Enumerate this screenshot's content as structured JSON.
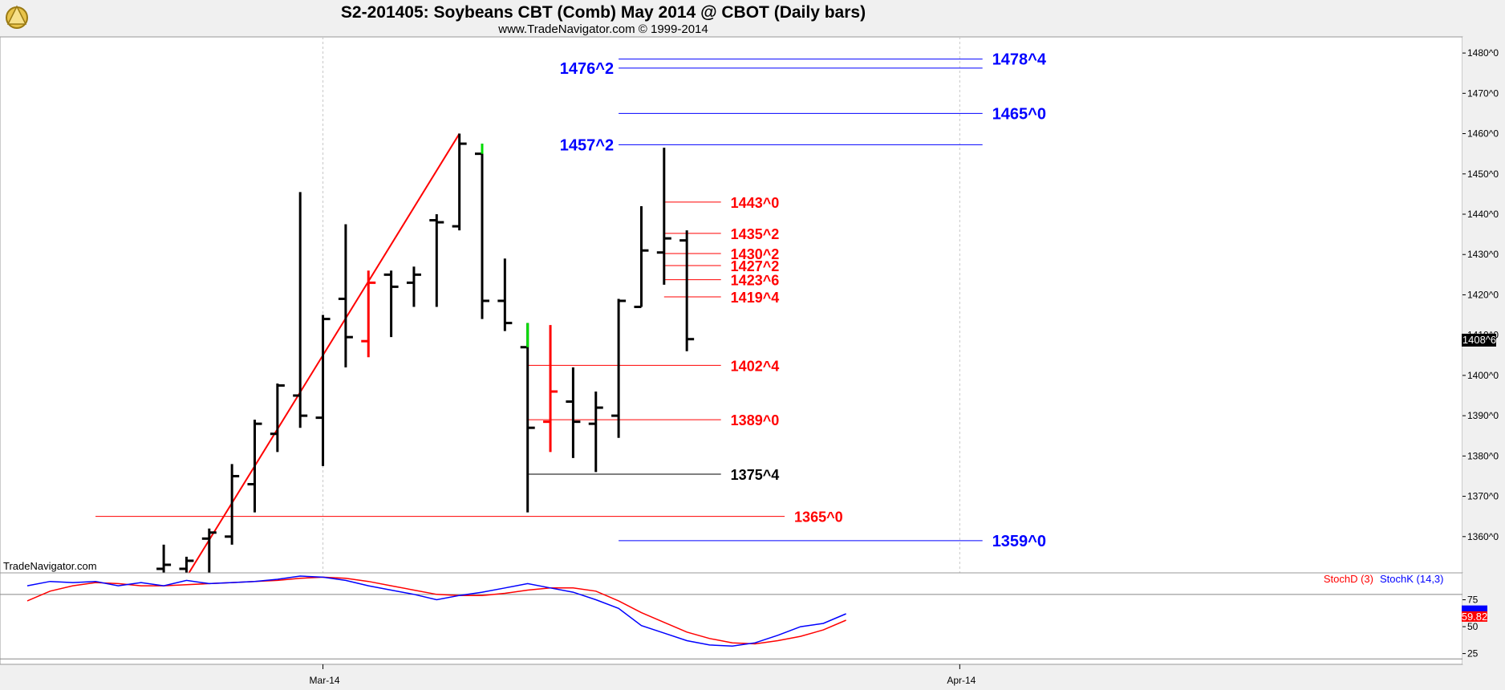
{
  "header": {
    "title": "S2-201405:  Soybeans CBT (Comb) May 2014 @ CBOT  (Daily bars)",
    "subtitle": "www.TradeNavigator.com © 1999-2014",
    "watermark": "TradeNavigator.com"
  },
  "chart_data": {
    "type": "ohlc",
    "y_range": [
      1351,
      1484
    ],
    "y_ticks": [
      {
        "v": 1360,
        "label": "1360^0"
      },
      {
        "v": 1370,
        "label": "1370^0"
      },
      {
        "v": 1380,
        "label": "1380^0"
      },
      {
        "v": 1390,
        "label": "1390^0"
      },
      {
        "v": 1400,
        "label": "1400^0"
      },
      {
        "v": 1410,
        "label": "1410^0"
      },
      {
        "v": 1420,
        "label": "1420^0"
      },
      {
        "v": 1430,
        "label": "1430^0"
      },
      {
        "v": 1440,
        "label": "1440^0"
      },
      {
        "v": 1450,
        "label": "1450^0"
      },
      {
        "v": 1460,
        "label": "1460^0"
      },
      {
        "v": 1470,
        "label": "1470^0"
      },
      {
        "v": 1480,
        "label": "1480^0"
      }
    ],
    "x_labels": [
      {
        "i": 13,
        "label": "Mar-14"
      },
      {
        "i": 41,
        "label": "Apr-14"
      }
    ],
    "bars": [
      {
        "i": 6,
        "o": 1352,
        "h": 1358,
        "l": 1351,
        "c": 1353,
        "color": "#000000"
      },
      {
        "i": 7,
        "o": 1352,
        "h": 1355,
        "l": 1351,
        "c": 1354,
        "color": "#000000"
      },
      {
        "i": 8,
        "o": 1359.5,
        "h": 1362,
        "l": 1351,
        "c": 1361,
        "color": "#000000"
      },
      {
        "i": 9,
        "o": 1360,
        "h": 1378,
        "l": 1358,
        "c": 1375,
        "color": "#000000"
      },
      {
        "i": 10,
        "o": 1373,
        "h": 1389,
        "l": 1366,
        "c": 1388,
        "color": "#000000"
      },
      {
        "i": 11,
        "o": 1385.5,
        "h": 1398,
        "l": 1381,
        "c": 1397.5,
        "color": "#000000"
      },
      {
        "i": 12,
        "o": 1395,
        "h": 1445.5,
        "l": 1387,
        "c": 1390,
        "color": "#000000"
      },
      {
        "i": 13,
        "o": 1389.5,
        "h": 1415,
        "l": 1377.5,
        "c": 1414,
        "color": "#000000"
      },
      {
        "i": 14,
        "o": 1419,
        "h": 1437.5,
        "l": 1402,
        "c": 1409.5,
        "color": "#000000"
      },
      {
        "i": 15,
        "o": 1408.5,
        "h": 1426,
        "l": 1404.5,
        "c": 1423,
        "color": "#ff0000"
      },
      {
        "i": 16,
        "o": 1425,
        "h": 1426,
        "l": 1409.5,
        "c": 1422,
        "color": "#000000"
      },
      {
        "i": 17,
        "o": 1423,
        "h": 1427,
        "l": 1417,
        "c": 1425,
        "color": "#000000"
      },
      {
        "i": 18,
        "o": 1438.5,
        "h": 1440,
        "l": 1417,
        "c": 1438,
        "color": "#000000"
      },
      {
        "i": 19,
        "o": 1437,
        "h": 1460,
        "l": 1436,
        "c": 1457.5,
        "color": "#000000"
      },
      {
        "i": 20,
        "o": 1455,
        "h": 1457.5,
        "l": 1414,
        "c": 1418.5,
        "color": "#000000"
      },
      {
        "i": 21,
        "o": 1418.5,
        "h": 1429,
        "l": 1411,
        "c": 1413,
        "color": "#000000"
      },
      {
        "i": 22,
        "o": 1407,
        "h": 1413,
        "l": 1366,
        "c": 1387,
        "color": "#000000"
      },
      {
        "i": 23,
        "o": 1388.5,
        "h": 1412.5,
        "l": 1381,
        "c": 1396,
        "color": "#ff0000"
      },
      {
        "i": 24,
        "o": 1393.5,
        "h": 1402,
        "l": 1379.5,
        "c": 1388.5,
        "color": "#000000"
      },
      {
        "i": 25,
        "o": 1388,
        "h": 1396,
        "l": 1376,
        "c": 1392,
        "color": "#000000"
      },
      {
        "i": 26,
        "o": 1390,
        "h": 1419,
        "l": 1384.5,
        "c": 1418.5,
        "color": "#000000"
      },
      {
        "i": 27,
        "o": 1417,
        "h": 1442,
        "l": 1417,
        "c": 1431,
        "color": "#000000"
      },
      {
        "i": 28,
        "o": 1430.5,
        "h": 1456.5,
        "l": 1422.5,
        "c": 1434,
        "color": "#000000"
      },
      {
        "i": 29,
        "o": 1433.5,
        "h": 1436,
        "l": 1406,
        "c": 1409,
        "color": "#000000"
      }
    ],
    "green_ticks": [
      {
        "i": 20,
        "from": 1455,
        "to": 1457.5
      },
      {
        "i": 22,
        "from": 1407,
        "to": 1413
      }
    ],
    "trendline": {
      "from": {
        "i": 7,
        "v": 1350
      },
      "to": {
        "i": 19,
        "v": 1460
      },
      "color": "#ff0000"
    },
    "levels": [
      {
        "label": "1478^4",
        "price": 1478.5,
        "color": "#0000ff",
        "i_from": 26,
        "i_to": 42,
        "label_side": "right",
        "size": "big"
      },
      {
        "label": "1476^2",
        "price": 1476.25,
        "color": "#0000ff",
        "i_from": 26,
        "i_to": 42,
        "label_side": "left",
        "size": "big"
      },
      {
        "label": "1465^0",
        "price": 1465,
        "color": "#0000ff",
        "i_from": 26,
        "i_to": 42,
        "label_side": "right",
        "size": "big"
      },
      {
        "label": "1457^2",
        "price": 1457.25,
        "color": "#0000ff",
        "i_from": 26,
        "i_to": 42,
        "label_side": "left",
        "size": "big"
      },
      {
        "label": "1443^0",
        "price": 1443,
        "color": "#ff0000",
        "i_from": 28,
        "i_to": 30.5,
        "label_side": "right",
        "size": "normal"
      },
      {
        "label": "1435^2",
        "price": 1435.25,
        "color": "#ff0000",
        "i_from": 28,
        "i_to": 30.5,
        "label_side": "right",
        "size": "normal"
      },
      {
        "label": "1430^2",
        "price": 1430.25,
        "color": "#ff0000",
        "i_from": 28,
        "i_to": 30.5,
        "label_side": "right",
        "size": "normal"
      },
      {
        "label": "1427^2",
        "price": 1427.25,
        "color": "#ff0000",
        "i_from": 28,
        "i_to": 30.5,
        "label_side": "right",
        "size": "normal"
      },
      {
        "label": "1423^6",
        "price": 1423.75,
        "color": "#ff0000",
        "i_from": 28,
        "i_to": 30.5,
        "label_side": "right",
        "size": "normal"
      },
      {
        "label": "1419^4",
        "price": 1419.5,
        "color": "#ff0000",
        "i_from": 28,
        "i_to": 30.5,
        "label_side": "right",
        "size": "normal"
      },
      {
        "label": "1402^4",
        "price": 1402.5,
        "color": "#ff0000",
        "i_from": 22,
        "i_to": 30.5,
        "label_side": "right",
        "size": "normal"
      },
      {
        "label": "1389^0",
        "price": 1389,
        "color": "#ff0000",
        "i_from": 22,
        "i_to": 30.5,
        "label_side": "right",
        "size": "normal"
      },
      {
        "label": "1375^4",
        "price": 1375.5,
        "color": "#000000",
        "i_from": 22,
        "i_to": 30.5,
        "label_side": "right",
        "size": "normal"
      },
      {
        "label": "1365^0",
        "price": 1365,
        "color": "#ff0000",
        "i_from": 3,
        "i_to": 33.3,
        "label_side": "right",
        "size": "normal"
      },
      {
        "label": "1359^0",
        "price": 1359,
        "color": "#0000ff",
        "i_from": 26,
        "i_to": 42,
        "label_side": "right",
        "size": "big"
      }
    ],
    "last_price": {
      "label": "1408^6",
      "price": 1408.75
    },
    "stochastic": {
      "y_range": [
        15,
        100
      ],
      "ticks": [
        {
          "v": 25,
          "label": "25"
        },
        {
          "v": 50,
          "label": "50"
        },
        {
          "v": 75,
          "label": "75"
        }
      ],
      "overbought": 80,
      "oversold": 20,
      "k_label": "StochK (14,3)",
      "d_label": "StochD (3)",
      "k_color": "#0000ff",
      "d_color": "#ff0000",
      "k_value_label": "",
      "d_value_label": "59.82",
      "k_last": 63,
      "d_last": 59.82,
      "k": [
        [
          0,
          88
        ],
        [
          1,
          92
        ],
        [
          2,
          91
        ],
        [
          3,
          92
        ],
        [
          4,
          88
        ],
        [
          5,
          91
        ],
        [
          6,
          88
        ],
        [
          7,
          93
        ],
        [
          8,
          90
        ],
        [
          9,
          91
        ],
        [
          10,
          92
        ],
        [
          11,
          94
        ],
        [
          12,
          97
        ],
        [
          13,
          96
        ],
        [
          14,
          93
        ],
        [
          15,
          88
        ],
        [
          16,
          84
        ],
        [
          17,
          80
        ],
        [
          18,
          75
        ],
        [
          19,
          79
        ],
        [
          20,
          82
        ],
        [
          21,
          86
        ],
        [
          22,
          90
        ],
        [
          23,
          86
        ],
        [
          24,
          82
        ],
        [
          25,
          75
        ],
        [
          26,
          67
        ],
        [
          27,
          51
        ],
        [
          28,
          44
        ],
        [
          29,
          37
        ],
        [
          30,
          33
        ],
        [
          31,
          32
        ],
        [
          32,
          35
        ],
        [
          33,
          42
        ],
        [
          34,
          50
        ],
        [
          35,
          53
        ],
        [
          36,
          62
        ]
      ],
      "d": [
        [
          0,
          74
        ],
        [
          1,
          83
        ],
        [
          2,
          88
        ],
        [
          3,
          91
        ],
        [
          4,
          90
        ],
        [
          5,
          88
        ],
        [
          6,
          88
        ],
        [
          7,
          89
        ],
        [
          8,
          90
        ],
        [
          9,
          91
        ],
        [
          10,
          92
        ],
        [
          11,
          93
        ],
        [
          12,
          95
        ],
        [
          13,
          96
        ],
        [
          14,
          95
        ],
        [
          15,
          92
        ],
        [
          16,
          88
        ],
        [
          17,
          84
        ],
        [
          18,
          80
        ],
        [
          19,
          79
        ],
        [
          20,
          79
        ],
        [
          21,
          81
        ],
        [
          22,
          84
        ],
        [
          23,
          86
        ],
        [
          24,
          86
        ],
        [
          25,
          83
        ],
        [
          26,
          74
        ],
        [
          27,
          63
        ],
        [
          28,
          54
        ],
        [
          29,
          45
        ],
        [
          30,
          39
        ],
        [
          31,
          35
        ],
        [
          32,
          34
        ],
        [
          33,
          37
        ],
        [
          34,
          41
        ],
        [
          35,
          47
        ],
        [
          36,
          56
        ]
      ]
    }
  }
}
